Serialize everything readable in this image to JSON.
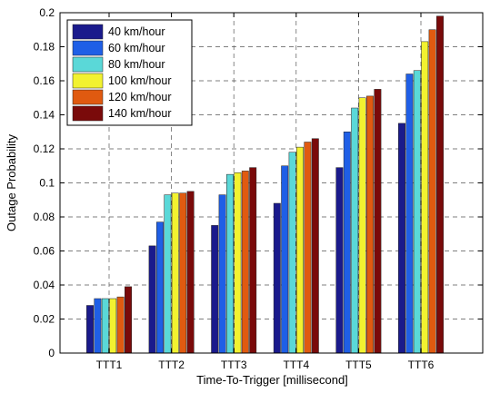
{
  "chart_data": {
    "type": "bar",
    "title": "",
    "xlabel": "Time-To-Trigger [millisecond]",
    "ylabel": "Outage Probability",
    "ylim": [
      0,
      0.2
    ],
    "yticks": [
      "0",
      "0.02",
      "0.04",
      "0.06",
      "0.08",
      "0.1",
      "0.12",
      "0.14",
      "0.16",
      "0.18",
      "0.2"
    ],
    "categories": [
      "TTT1",
      "TTT2",
      "TTT3",
      "TTT4",
      "TTT5",
      "TTT6"
    ],
    "grid": true,
    "legend_position": "top-left",
    "series": [
      {
        "name": "40 km/hour",
        "color": "#1a1a8c",
        "values": [
          0.028,
          0.063,
          0.075,
          0.088,
          0.109,
          0.135
        ]
      },
      {
        "name": "60 km/hour",
        "color": "#1f5fe6",
        "values": [
          0.032,
          0.077,
          0.093,
          0.11,
          0.13,
          0.164
        ]
      },
      {
        "name": "80 km/hour",
        "color": "#5ad8d8",
        "values": [
          0.032,
          0.093,
          0.105,
          0.118,
          0.144,
          0.166
        ]
      },
      {
        "name": "100 km/hour",
        "color": "#f2f230",
        "values": [
          0.032,
          0.094,
          0.106,
          0.121,
          0.15,
          0.183
        ]
      },
      {
        "name": "120 km/hour",
        "color": "#e05a10",
        "values": [
          0.033,
          0.094,
          0.107,
          0.124,
          0.151,
          0.19
        ]
      },
      {
        "name": "140 km/hour",
        "color": "#7a0a0a",
        "values": [
          0.039,
          0.095,
          0.109,
          0.126,
          0.155,
          0.198
        ]
      }
    ]
  }
}
